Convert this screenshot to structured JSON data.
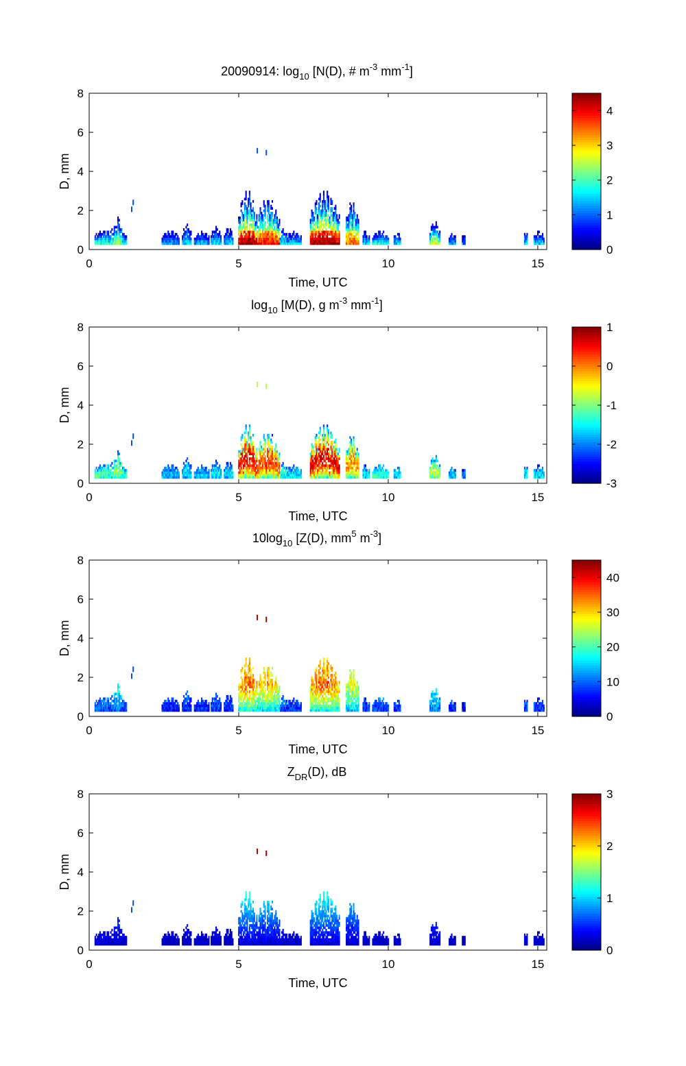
{
  "chart_data": [
    {
      "type": "heatmap",
      "title": {
        "pre": "20090914: log",
        "sub": "10",
        "mid": " [N(D), # m",
        "sup1": "-3",
        "mid2": " mm",
        "sup2": "-1",
        "post": "]"
      },
      "xlabel": "Time, UTC",
      "ylabel": "D, mm",
      "xlim": [
        0,
        15.3
      ],
      "ylim": [
        0,
        8
      ],
      "xticks": [
        "0",
        "5",
        "10",
        "15"
      ],
      "yticks": [
        "0",
        "2",
        "4",
        "6",
        "8"
      ],
      "colorbar": {
        "min": 0,
        "max": 4.5,
        "ticks": [
          "0",
          "1",
          "2",
          "3",
          "4"
        ],
        "tick_values": [
          0,
          1,
          2,
          3,
          4
        ]
      },
      "field_scale": {
        "low": 0.4,
        "high": 4.4
      },
      "colormap": "jet",
      "grid": false
    },
    {
      "type": "heatmap",
      "title": {
        "pre": "log",
        "sub": "10",
        "mid": " [M(D), g m",
        "sup1": "-3",
        "mid2": " mm",
        "sup2": "-1",
        "post": "]"
      },
      "xlabel": "Time, UTC",
      "ylabel": "D, mm",
      "xlim": [
        0,
        15.3
      ],
      "ylim": [
        0,
        8
      ],
      "xticks": [
        "0",
        "5",
        "10",
        "15"
      ],
      "yticks": [
        "0",
        "2",
        "4",
        "6",
        "8"
      ],
      "colorbar": {
        "min": -3,
        "max": 1,
        "ticks": [
          "-3",
          "-2",
          "-1",
          "0",
          "1"
        ],
        "tick_values": [
          -3,
          -2,
          -1,
          0,
          1
        ]
      },
      "field_scale": {
        "low": -3,
        "high": 0.2
      },
      "colormap": "jet",
      "grid": false
    },
    {
      "type": "heatmap",
      "title": {
        "pre": "10log",
        "sub": "10",
        "mid": " [Z(D),  mm",
        "sup1": "5",
        "mid2": " m",
        "sup2": "-3",
        "post": "]"
      },
      "xlabel": "Time, UTC",
      "ylabel": "D, mm",
      "xlim": [
        0,
        15.3
      ],
      "ylim": [
        0,
        8
      ],
      "xticks": [
        "0",
        "5",
        "10",
        "15"
      ],
      "yticks": [
        "0",
        "2",
        "4",
        "6",
        "8"
      ],
      "colorbar": {
        "min": 0,
        "max": 45,
        "ticks": [
          "0",
          "10",
          "20",
          "30",
          "40"
        ],
        "tick_values": [
          0,
          10,
          20,
          30,
          40
        ]
      },
      "field_scale": {
        "low": 0,
        "high": 38
      },
      "colormap": "jet",
      "grid": false
    },
    {
      "type": "heatmap",
      "title": {
        "pre": "Z",
        "sub": "DR",
        "mid": "(D), dB",
        "sup1": "",
        "mid2": "",
        "sup2": "",
        "post": ""
      },
      "xlabel": "Time, UTC",
      "ylabel": "D, mm",
      "xlim": [
        0,
        15.3
      ],
      "ylim": [
        0,
        8
      ],
      "xticks": [
        "0",
        "5",
        "10",
        "15"
      ],
      "yticks": [
        "0",
        "2",
        "4",
        "6",
        "8"
      ],
      "colorbar": {
        "min": 0,
        "max": 3,
        "ticks": [
          "0",
          "1",
          "2",
          "3"
        ],
        "tick_values": [
          0,
          1,
          2,
          3
        ]
      },
      "field_scale": {
        "low": 0,
        "high": 0.9
      },
      "colormap": "jet",
      "grid": false
    }
  ]
}
